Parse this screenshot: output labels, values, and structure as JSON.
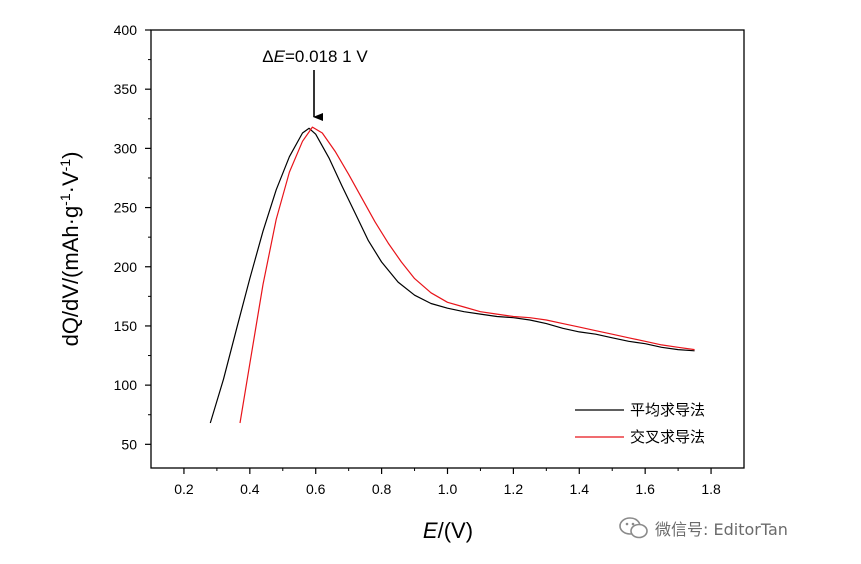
{
  "chart_data": {
    "type": "line",
    "xlabel": "E/(V)",
    "ylabel": "dQ/dV/(mAh·g⁻¹·V⁻¹)",
    "xlim": [
      0.1,
      1.9
    ],
    "ylim": [
      30,
      400
    ],
    "xticks": [
      "0.2",
      "0.4",
      "0.6",
      "0.8",
      "1.0",
      "1.2",
      "1.4",
      "1.6",
      "1.8"
    ],
    "yticks": [
      "50",
      "100",
      "150",
      "200",
      "250",
      "300",
      "350",
      "400"
    ],
    "grid": false,
    "legend_position": "bottom-right",
    "annotation": {
      "text": "ΔE=0.018 1 V",
      "x": 0.59,
      "y": 318
    },
    "series": [
      {
        "name": "平均求导法",
        "color": "#000000",
        "x": [
          0.28,
          0.32,
          0.36,
          0.4,
          0.44,
          0.48,
          0.52,
          0.56,
          0.58,
          0.6,
          0.64,
          0.68,
          0.72,
          0.76,
          0.8,
          0.85,
          0.9,
          0.95,
          1.0,
          1.05,
          1.1,
          1.15,
          1.2,
          1.25,
          1.3,
          1.35,
          1.4,
          1.45,
          1.5,
          1.55,
          1.6,
          1.65,
          1.7,
          1.75
        ],
        "y": [
          68,
          105,
          148,
          190,
          230,
          265,
          293,
          313,
          317,
          312,
          292,
          268,
          245,
          222,
          204,
          187,
          176,
          169,
          165,
          162,
          160,
          158,
          157,
          155,
          152,
          148,
          145,
          143,
          140,
          137,
          135,
          132,
          130,
          129
        ]
      },
      {
        "name": "交叉求导法",
        "color": "#e8141a",
        "x": [
          0.37,
          0.4,
          0.44,
          0.48,
          0.52,
          0.56,
          0.59,
          0.62,
          0.66,
          0.7,
          0.74,
          0.78,
          0.82,
          0.86,
          0.9,
          0.95,
          1.0,
          1.05,
          1.1,
          1.15,
          1.2,
          1.25,
          1.3,
          1.35,
          1.4,
          1.45,
          1.5,
          1.55,
          1.6,
          1.65,
          1.7,
          1.75
        ],
        "y": [
          68,
          118,
          185,
          240,
          280,
          306,
          318,
          313,
          297,
          278,
          258,
          238,
          220,
          204,
          190,
          178,
          170,
          166,
          162,
          160,
          158,
          157,
          155,
          152,
          149,
          146,
          143,
          140,
          137,
          134,
          132,
          130
        ]
      }
    ]
  },
  "watermark": {
    "text": "微信号: EditorTan"
  }
}
